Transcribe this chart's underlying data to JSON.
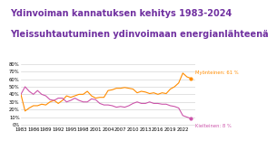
{
  "title1": "Ydinvoiman kannatuksen kehitys 1983-2024",
  "title2": "Yleissuhtautuminen ydinvoimaan energianlähteenä",
  "title_color": "#7030A0",
  "line1_label": "Myönteinen: 61 %",
  "line2_label": "Kielteinen: 8 %",
  "line1_color": "#FF8C00",
  "line2_color": "#CC55AA",
  "years": [
    1983,
    1984,
    1985,
    1986,
    1987,
    1988,
    1989,
    1990,
    1991,
    1992,
    1993,
    1994,
    1995,
    1996,
    1997,
    1998,
    1999,
    2000,
    2001,
    2002,
    2003,
    2004,
    2005,
    2006,
    2007,
    2008,
    2009,
    2010,
    2011,
    2012,
    2013,
    2014,
    2015,
    2016,
    2017,
    2018,
    2019,
    2020,
    2021,
    2022,
    2023,
    2024
  ],
  "myonteinen": [
    0.4,
    0.18,
    0.22,
    0.25,
    0.25,
    0.27,
    0.26,
    0.3,
    0.32,
    0.28,
    0.32,
    0.38,
    0.36,
    0.38,
    0.4,
    0.4,
    0.44,
    0.38,
    0.35,
    0.36,
    0.36,
    0.45,
    0.46,
    0.48,
    0.48,
    0.49,
    0.48,
    0.47,
    0.42,
    0.44,
    0.43,
    0.41,
    0.42,
    0.4,
    0.42,
    0.41,
    0.47,
    0.5,
    0.55,
    0.68,
    0.63,
    0.61
  ],
  "kielteinen": [
    0.4,
    0.5,
    0.44,
    0.4,
    0.45,
    0.4,
    0.38,
    0.33,
    0.32,
    0.35,
    0.35,
    0.3,
    0.32,
    0.35,
    0.32,
    0.3,
    0.3,
    0.34,
    0.33,
    0.28,
    0.26,
    0.26,
    0.25,
    0.23,
    0.24,
    0.23,
    0.25,
    0.28,
    0.3,
    0.28,
    0.28,
    0.3,
    0.28,
    0.28,
    0.27,
    0.27,
    0.25,
    0.24,
    0.22,
    0.12,
    0.1,
    0.08
  ],
  "ylim": [
    -0.02,
    0.82
  ],
  "yticks": [
    0.0,
    0.1,
    0.2,
    0.3,
    0.4,
    0.5,
    0.6,
    0.7,
    0.8
  ],
  "xticks": [
    1983,
    1986,
    1989,
    1992,
    1995,
    1998,
    2001,
    2004,
    2007,
    2010,
    2013,
    2016,
    2019,
    2022
  ],
  "grid_color": "#cccccc",
  "bg_color": "#ffffff",
  "title1_fontsize": 7.0,
  "title2_fontsize": 7.0,
  "tick_fontsize": 3.8,
  "label_fontsize": 3.8
}
